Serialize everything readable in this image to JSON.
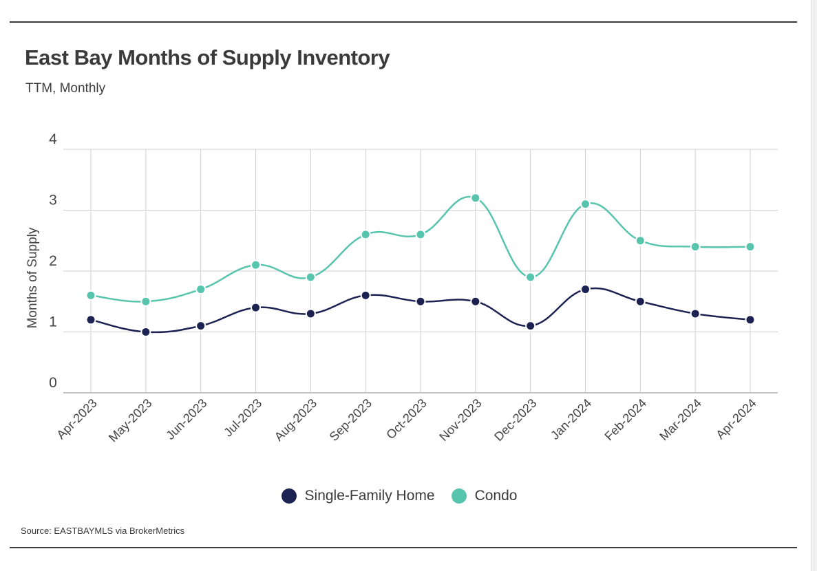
{
  "header": {
    "title": "East Bay Months of Supply Inventory",
    "subtitle": "TTM, Monthly"
  },
  "legend": {
    "items": [
      {
        "label": "Single-Family Home",
        "color": "#1c2353"
      },
      {
        "label": "Condo",
        "color": "#57c4ae"
      }
    ]
  },
  "footer": {
    "source": "Source:  EASTBAYMLS via BrokerMetrics"
  },
  "chart_data": {
    "type": "line",
    "title": "East Bay Months of Supply Inventory",
    "subtitle": "TTM, Monthly",
    "xlabel": "",
    "ylabel": "Months of Supply",
    "ylim": [
      0,
      4
    ],
    "yticks": [
      0,
      1,
      2,
      3,
      4
    ],
    "grid": true,
    "smooth": true,
    "legend_position": "bottom",
    "categories": [
      "Apr-2023",
      "May-2023",
      "Jun-2023",
      "Jul-2023",
      "Aug-2023",
      "Sep-2023",
      "Oct-2023",
      "Nov-2023",
      "Dec-2023",
      "Jan-2024",
      "Feb-2024",
      "Mar-2024",
      "Apr-2024"
    ],
    "series": [
      {
        "name": "Single-Family Home",
        "color": "#1c2353",
        "values": [
          1.2,
          1.0,
          1.1,
          1.4,
          1.3,
          1.6,
          1.5,
          1.5,
          1.1,
          1.7,
          1.5,
          1.3,
          1.2
        ]
      },
      {
        "name": "Condo",
        "color": "#57c4ae",
        "values": [
          1.6,
          1.5,
          1.7,
          2.1,
          1.9,
          2.6,
          2.6,
          3.2,
          1.9,
          3.1,
          2.5,
          2.4,
          2.4
        ]
      }
    ]
  }
}
